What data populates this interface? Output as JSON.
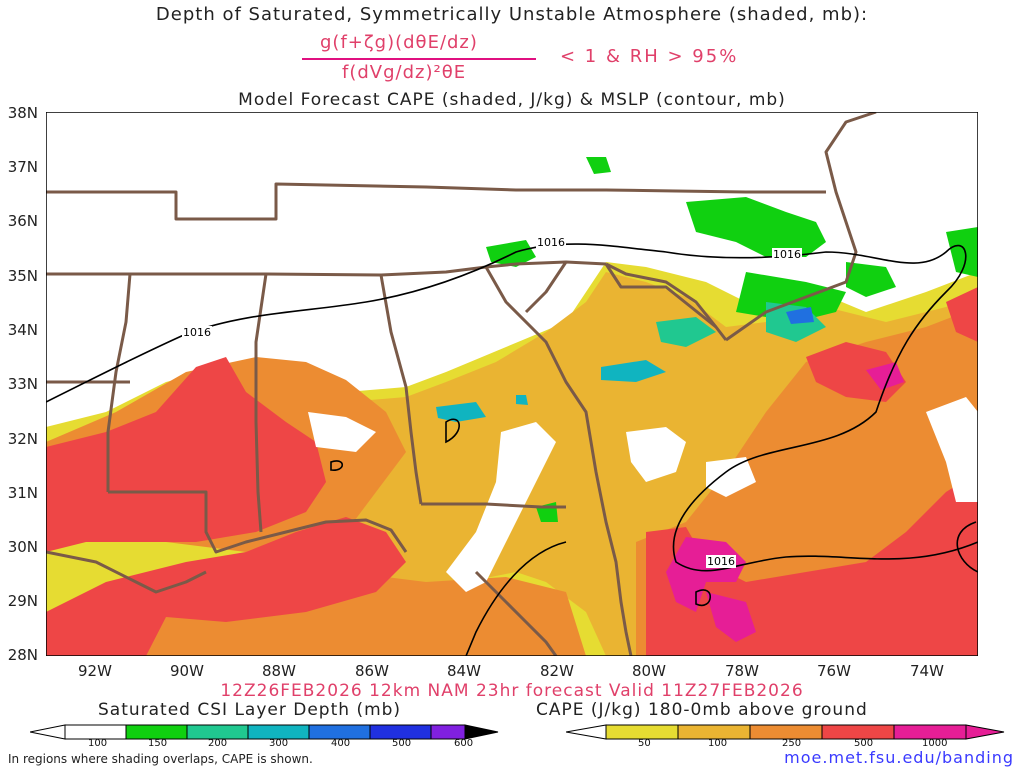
{
  "title": {
    "line1": "Depth of Saturated, Symmetrically Unstable Atmosphere (shaded, mb):",
    "numerator": "g(f+ζg)(dθE/dz)",
    "denominator": "f(dVg/dz)²θE",
    "condition": "< 1 & RH > 95%",
    "line3": "Model Forecast CAPE (shaded, J/kg) & MSLP (contour, mb)"
  },
  "map": {
    "lat_labels": [
      "38N",
      "37N",
      "36N",
      "35N",
      "34N",
      "33N",
      "32N",
      "31N",
      "30N",
      "29N",
      "28N"
    ],
    "lon_labels": [
      "92W",
      "90W",
      "88W",
      "86W",
      "84W",
      "82W",
      "80W",
      "78W",
      "76W",
      "74W"
    ],
    "isobar_labels": [
      "1016",
      "1016",
      "1016",
      "1016"
    ],
    "colors": {
      "cape_50": "#e6dc32",
      "cape_100": "#eab432",
      "cape_250": "#ec8c32",
      "cape_500": "#ee4646",
      "cape_1000": "#e61e96",
      "csi_100": "#10d010",
      "csi_150": "#20c890",
      "csi_200": "#10b4c0",
      "csi_300": "#2070e0",
      "borders": "#7a5a48",
      "isobar": "#000000"
    }
  },
  "valid_line": "12Z26FEB2026 12km NAM 23hr forecast Valid 11Z27FEB2026",
  "legend_csi": {
    "label": "Saturated CSI Layer Depth (mb)",
    "ticks": [
      "100",
      "150",
      "200",
      "300",
      "400",
      "500",
      "600"
    ],
    "colors": [
      "#ffffff",
      "#10d010",
      "#20c890",
      "#10b4c0",
      "#2070e0",
      "#2030e0",
      "#8020e0",
      "#000000"
    ]
  },
  "legend_cape": {
    "label": "CAPE (J/kg) 180-0mb above ground",
    "ticks": [
      "50",
      "100",
      "250",
      "500",
      "1000"
    ],
    "colors": [
      "#ffffff",
      "#e6dc32",
      "#eab432",
      "#ec8c32",
      "#ee4646",
      "#e61e96"
    ]
  },
  "footer": {
    "note": "In regions where shading overlaps, CAPE is shown.",
    "credit": "moe.met.fsu.edu/banding"
  }
}
